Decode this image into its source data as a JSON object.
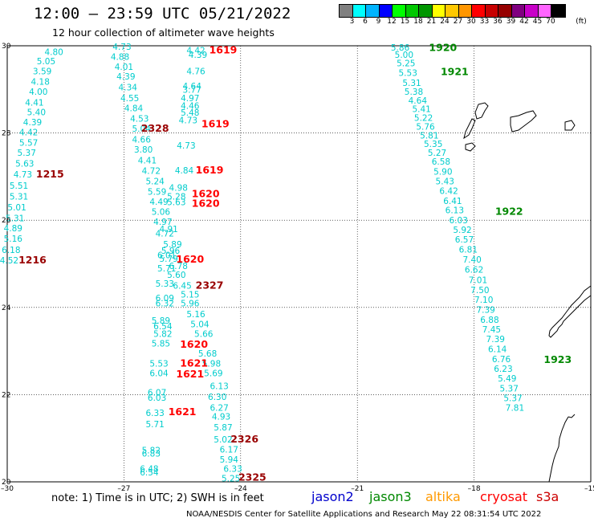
{
  "header": {
    "title": "12:00 – 23:59 UTC 05/21/2022",
    "subtitle": "12 hour collection of altimeter wave heights"
  },
  "legend": {
    "colors": [
      "#808080",
      "#00ffff",
      "#00b4ff",
      "#0000ff",
      "#00ff00",
      "#00c800",
      "#009600",
      "#ffff00",
      "#ffc800",
      "#ff9600",
      "#ff0000",
      "#c80000",
      "#960000",
      "#800080",
      "#c800c8",
      "#ff64ff",
      "#000000"
    ],
    "ticks": [
      "3",
      "6",
      "9",
      "12",
      "15",
      "18",
      "21",
      "24",
      "27",
      "30",
      "33",
      "36",
      "39",
      "42",
      "45",
      "70",
      "(ft)"
    ]
  },
  "axes": {
    "lon_labels": [
      "–30",
      "–27",
      "–24",
      "–21",
      "–18",
      "–15"
    ],
    "lat_labels": [
      "30",
      "28",
      "26",
      "24",
      "22",
      "20"
    ]
  },
  "colors": {
    "cyan": "#00cccc",
    "cryosat": "#ff0000",
    "cryosat_dark": "#990000",
    "jason3": "#008800"
  },
  "wave_heights": [
    {
      "v": "4.80",
      "lon": -28.8,
      "lat": 29.86,
      "c": "cyan"
    },
    {
      "v": "5.05",
      "lon": -29.0,
      "lat": 29.65,
      "c": "cyan"
    },
    {
      "v": "3.59",
      "lon": -29.1,
      "lat": 29.42,
      "c": "cyan"
    },
    {
      "v": "4.18",
      "lon": -29.15,
      "lat": 29.18,
      "c": "cyan"
    },
    {
      "v": "4.00",
      "lon": -29.2,
      "lat": 28.95,
      "c": "cyan"
    },
    {
      "v": "4.41",
      "lon": -29.3,
      "lat": 28.7,
      "c": "cyan"
    },
    {
      "v": "5.40",
      "lon": -29.25,
      "lat": 28.48,
      "c": "cyan"
    },
    {
      "v": "4.39",
      "lon": -29.35,
      "lat": 28.25,
      "c": "cyan"
    },
    {
      "v": "4.42",
      "lon": -29.45,
      "lat": 28.02,
      "c": "cyan"
    },
    {
      "v": "5.57",
      "lon": -29.45,
      "lat": 27.78,
      "c": "cyan"
    },
    {
      "v": "5.37",
      "lon": -29.5,
      "lat": 27.55,
      "c": "cyan"
    },
    {
      "v": "5.63",
      "lon": -29.55,
      "lat": 27.3,
      "c": "cyan"
    },
    {
      "v": "4.73",
      "lon": -29.6,
      "lat": 27.05,
      "c": "cyan"
    },
    {
      "v": "5.51",
      "lon": -29.7,
      "lat": 26.8,
      "c": "cyan"
    },
    {
      "v": "5.31",
      "lon": -29.7,
      "lat": 26.55,
      "c": "cyan"
    },
    {
      "v": "5.01",
      "lon": -29.75,
      "lat": 26.3,
      "c": "cyan"
    },
    {
      "v": "5.31",
      "lon": -29.8,
      "lat": 26.05,
      "c": "cyan"
    },
    {
      "v": "4.89",
      "lon": -29.85,
      "lat": 25.82,
      "c": "cyan"
    },
    {
      "v": "5.16",
      "lon": -29.85,
      "lat": 25.58,
      "c": "cyan"
    },
    {
      "v": "6.18",
      "lon": -29.9,
      "lat": 25.32,
      "c": "cyan"
    },
    {
      "v": "4.52",
      "lon": -29.95,
      "lat": 25.08,
      "c": "cyan"
    },
    {
      "v": "1215",
      "lon": -28.9,
      "lat": 27.05,
      "c": "cryosat_dark"
    },
    {
      "v": "1216",
      "lon": -29.35,
      "lat": 25.08,
      "c": "cryosat_dark"
    },
    {
      "v": "4.73",
      "lon": -27.05,
      "lat": 29.98,
      "c": "cyan"
    },
    {
      "v": "4.88",
      "lon": -27.1,
      "lat": 29.75,
      "c": "cyan"
    },
    {
      "v": "4.01",
      "lon": -27.0,
      "lat": 29.52,
      "c": "cyan"
    },
    {
      "v": "4.39",
      "lon": -26.95,
      "lat": 29.3,
      "c": "cyan"
    },
    {
      "v": "4.34",
      "lon": -26.9,
      "lat": 29.05,
      "c": "cyan"
    },
    {
      "v": "4.55",
      "lon": -26.85,
      "lat": 28.8,
      "c": "cyan"
    },
    {
      "v": "4.84",
      "lon": -26.75,
      "lat": 28.57,
      "c": "cyan"
    },
    {
      "v": "4.53",
      "lon": -26.6,
      "lat": 28.33,
      "c": "cyan"
    },
    {
      "v": "5.04",
      "lon": -26.55,
      "lat": 28.1,
      "c": "cyan"
    },
    {
      "v": "4.66",
      "lon": -26.55,
      "lat": 27.85,
      "c": "cyan"
    },
    {
      "v": "3.80",
      "lon": -26.5,
      "lat": 27.62,
      "c": "cyan"
    },
    {
      "v": "4.41",
      "lon": -26.4,
      "lat": 27.38,
      "c": "cyan"
    },
    {
      "v": "4.72",
      "lon": -26.3,
      "lat": 27.14,
      "c": "cyan"
    },
    {
      "v": "5.24",
      "lon": -26.2,
      "lat": 26.9,
      "c": "cyan"
    },
    {
      "v": "5.59",
      "lon": -26.15,
      "lat": 26.66,
      "c": "cyan"
    },
    {
      "v": "4.49",
      "lon": -26.1,
      "lat": 26.43,
      "c": "cyan"
    },
    {
      "v": "5.06",
      "lon": -26.05,
      "lat": 26.2,
      "c": "cyan"
    },
    {
      "v": "4.97",
      "lon": -26.0,
      "lat": 25.97,
      "c": "cyan"
    },
    {
      "v": "4.91",
      "lon": -25.85,
      "lat": 25.8,
      "c": "cyan"
    },
    {
      "v": "4.72",
      "lon": -25.95,
      "lat": 25.7,
      "c": "cyan"
    },
    {
      "v": "5.89",
      "lon": -25.75,
      "lat": 25.45,
      "c": "cyan"
    },
    {
      "v": "5.96",
      "lon": -25.8,
      "lat": 25.3,
      "c": "cyan"
    },
    {
      "v": "6.01",
      "lon": -25.9,
      "lat": 25.2,
      "c": "cyan"
    },
    {
      "v": "5.79",
      "lon": -25.85,
      "lat": 25.12,
      "c": "cyan"
    },
    {
      "v": "6.78",
      "lon": -25.6,
      "lat": 24.95,
      "c": "cyan"
    },
    {
      "v": "5.71",
      "lon": -25.9,
      "lat": 24.9,
      "c": "cyan"
    },
    {
      "v": "5.60",
      "lon": -25.65,
      "lat": 24.75,
      "c": "cyan"
    },
    {
      "v": "5.33",
      "lon": -25.95,
      "lat": 24.55,
      "c": "cyan"
    },
    {
      "v": "6.45",
      "lon": -25.5,
      "lat": 24.5,
      "c": "cyan"
    },
    {
      "v": "5.15",
      "lon": -25.3,
      "lat": 24.3,
      "c": "cyan"
    },
    {
      "v": "6.09",
      "lon": -25.95,
      "lat": 24.22,
      "c": "cyan"
    },
    {
      "v": "6.32",
      "lon": -25.95,
      "lat": 24.1,
      "c": "cyan"
    },
    {
      "v": "5.96",
      "lon": -25.3,
      "lat": 24.1,
      "c": "cyan"
    },
    {
      "v": "5.16",
      "lon": -25.15,
      "lat": 23.85,
      "c": "cyan"
    },
    {
      "v": "5.89",
      "lon": -26.05,
      "lat": 23.7,
      "c": "cyan"
    },
    {
      "v": "5.04",
      "lon": -25.05,
      "lat": 23.62,
      "c": "cyan"
    },
    {
      "v": "6.54",
      "lon": -26.0,
      "lat": 23.57,
      "c": "cyan"
    },
    {
      "v": "5.66",
      "lon": -24.95,
      "lat": 23.4,
      "c": "cyan"
    },
    {
      "v": "5.82",
      "lon": -26.0,
      "lat": 23.4,
      "c": "cyan"
    },
    {
      "v": "5.85",
      "lon": -26.05,
      "lat": 23.18,
      "c": "cyan"
    },
    {
      "v": "5.68",
      "lon": -24.85,
      "lat": 22.95,
      "c": "cyan"
    },
    {
      "v": "5.53",
      "lon": -26.1,
      "lat": 22.72,
      "c": "cyan"
    },
    {
      "v": "5.98",
      "lon": -24.75,
      "lat": 22.72,
      "c": "cyan"
    },
    {
      "v": "6.04",
      "lon": -26.1,
      "lat": 22.5,
      "c": "cyan"
    },
    {
      "v": "5.69",
      "lon": -24.7,
      "lat": 22.5,
      "c": "cyan"
    },
    {
      "v": "6.13",
      "lon": -24.55,
      "lat": 22.2,
      "c": "cyan"
    },
    {
      "v": "6.07",
      "lon": -26.15,
      "lat": 22.05,
      "c": "cyan"
    },
    {
      "v": "6.30",
      "lon": -24.6,
      "lat": 21.95,
      "c": "cyan"
    },
    {
      "v": "6.03",
      "lon": -26.15,
      "lat": 21.93,
      "c": "cyan"
    },
    {
      "v": "6.27",
      "lon": -24.55,
      "lat": 21.7,
      "c": "cyan"
    },
    {
      "v": "6.33",
      "lon": -26.2,
      "lat": 21.58,
      "c": "cyan"
    },
    {
      "v": "4.93",
      "lon": -24.5,
      "lat": 21.5,
      "c": "cyan"
    },
    {
      "v": "5.71",
      "lon": -26.2,
      "lat": 21.33,
      "c": "cyan"
    },
    {
      "v": "5.87",
      "lon": -24.45,
      "lat": 21.25,
      "c": "cyan"
    },
    {
      "v": "5.02",
      "lon": -24.45,
      "lat": 20.98,
      "c": "cyan"
    },
    {
      "v": "5.82",
      "lon": -26.3,
      "lat": 20.73,
      "c": "cyan"
    },
    {
      "v": "6.17",
      "lon": -24.3,
      "lat": 20.75,
      "c": "cyan"
    },
    {
      "v": "6.83",
      "lon": -26.3,
      "lat": 20.65,
      "c": "cyan"
    },
    {
      "v": "5.94",
      "lon": -24.3,
      "lat": 20.52,
      "c": "cyan"
    },
    {
      "v": "6.33",
      "lon": -24.2,
      "lat": 20.3,
      "c": "cyan"
    },
    {
      "v": "6.48",
      "lon": -26.35,
      "lat": 20.3,
      "c": "cyan"
    },
    {
      "v": "6.54",
      "lon": -26.35,
      "lat": 20.22,
      "c": "cyan"
    },
    {
      "v": "5.25",
      "lon": -24.25,
      "lat": 20.08,
      "c": "cyan"
    },
    {
      "v": "4.42",
      "lon": -25.15,
      "lat": 29.9,
      "c": "cyan"
    },
    {
      "v": "4.39",
      "lon": -25.1,
      "lat": 29.8,
      "c": "cyan"
    },
    {
      "v": "4.76",
      "lon": -25.15,
      "lat": 29.42,
      "c": "cyan"
    },
    {
      "v": "4.64",
      "lon": -25.25,
      "lat": 29.08,
      "c": "cyan"
    },
    {
      "v": "3.77",
      "lon": -25.25,
      "lat": 29.0,
      "c": "cyan"
    },
    {
      "v": "4.97",
      "lon": -25.3,
      "lat": 28.8,
      "c": "cyan"
    },
    {
      "v": "4.46",
      "lon": -25.3,
      "lat": 28.63,
      "c": "cyan"
    },
    {
      "v": "5.48",
      "lon": -25.3,
      "lat": 28.47,
      "c": "cyan"
    },
    {
      "v": "4.73",
      "lon": -25.35,
      "lat": 28.3,
      "c": "cyan"
    },
    {
      "v": "4.73",
      "lon": -25.4,
      "lat": 27.72,
      "c": "cyan"
    },
    {
      "v": "4.84",
      "lon": -25.45,
      "lat": 27.15,
      "c": "cyan"
    },
    {
      "v": "4.98",
      "lon": -25.6,
      "lat": 26.75,
      "c": "cyan"
    },
    {
      "v": "5.28",
      "lon": -25.65,
      "lat": 26.55,
      "c": "cyan"
    },
    {
      "v": "5.63",
      "lon": -25.65,
      "lat": 26.42,
      "c": "cyan"
    },
    {
      "v": "1619",
      "lon": -24.45,
      "lat": 29.9,
      "c": "cryosat"
    },
    {
      "v": "2328",
      "lon": -26.2,
      "lat": 28.1,
      "c": "cryosat_dark"
    },
    {
      "v": "1619",
      "lon": -24.65,
      "lat": 28.2,
      "c": "cryosat"
    },
    {
      "v": "1619",
      "lon": -24.8,
      "lat": 27.15,
      "c": "cryosat"
    },
    {
      "v": "1620",
      "lon": -24.9,
      "lat": 26.6,
      "c": "cryosat"
    },
    {
      "v": "1620",
      "lon": -24.9,
      "lat": 26.38,
      "c": "cryosat"
    },
    {
      "v": "1620",
      "lon": -25.3,
      "lat": 25.1,
      "c": "cryosat"
    },
    {
      "v": "2327",
      "lon": -24.8,
      "lat": 24.5,
      "c": "cryosat_dark"
    },
    {
      "v": "1620",
      "lon": -25.2,
      "lat": 23.15,
      "c": "cryosat"
    },
    {
      "v": "1621",
      "lon": -25.2,
      "lat": 22.72,
      "c": "cryosat"
    },
    {
      "v": "1621",
      "lon": -25.3,
      "lat": 22.47,
      "c": "cryosat"
    },
    {
      "v": "1621",
      "lon": -25.5,
      "lat": 21.6,
      "c": "cryosat"
    },
    {
      "v": "2326",
      "lon": -23.9,
      "lat": 20.98,
      "c": "cryosat_dark"
    },
    {
      "v": "2325",
      "lon": -23.7,
      "lat": 20.1,
      "c": "cryosat_dark"
    },
    {
      "v": "5.86",
      "lon": -19.9,
      "lat": 29.96,
      "c": "cyan"
    },
    {
      "v": "5.00",
      "lon": -19.8,
      "lat": 29.8,
      "c": "cyan"
    },
    {
      "v": "5.25",
      "lon": -19.75,
      "lat": 29.6,
      "c": "cyan"
    },
    {
      "v": "5.53",
      "lon": -19.7,
      "lat": 29.38,
      "c": "cyan"
    },
    {
      "v": "5.31",
      "lon": -19.6,
      "lat": 29.15,
      "c": "cyan"
    },
    {
      "v": "5.38",
      "lon": -19.55,
      "lat": 28.95,
      "c": "cyan"
    },
    {
      "v": "4.64",
      "lon": -19.45,
      "lat": 28.75,
      "c": "cyan"
    },
    {
      "v": "5.41",
      "lon": -19.35,
      "lat": 28.55,
      "c": "cyan"
    },
    {
      "v": "5.22",
      "lon": -19.3,
      "lat": 28.35,
      "c": "cyan"
    },
    {
      "v": "5.76",
      "lon": -19.25,
      "lat": 28.15,
      "c": "cyan"
    },
    {
      "v": "5.81",
      "lon": -19.15,
      "lat": 27.95,
      "c": "cyan"
    },
    {
      "v": "5.35",
      "lon": -19.05,
      "lat": 27.75,
      "c": "cyan"
    },
    {
      "v": "5.27",
      "lon": -18.95,
      "lat": 27.55,
      "c": "cyan"
    },
    {
      "v": "6.58",
      "lon": -18.85,
      "lat": 27.35,
      "c": "cyan"
    },
    {
      "v": "5.90",
      "lon": -18.8,
      "lat": 27.12,
      "c": "cyan"
    },
    {
      "v": "5.43",
      "lon": -18.75,
      "lat": 26.9,
      "c": "cyan"
    },
    {
      "v": "6.42",
      "lon": -18.65,
      "lat": 26.68,
      "c": "cyan"
    },
    {
      "v": "6.41",
      "lon": -18.55,
      "lat": 26.45,
      "c": "cyan"
    },
    {
      "v": "6.13",
      "lon": -18.5,
      "lat": 26.23,
      "c": "cyan"
    },
    {
      "v": "6.03",
      "lon": -18.4,
      "lat": 26.0,
      "c": "cyan"
    },
    {
      "v": "5.92",
      "lon": -18.3,
      "lat": 25.78,
      "c": "cyan"
    },
    {
      "v": "6.57",
      "lon": -18.25,
      "lat": 25.56,
      "c": "cyan"
    },
    {
      "v": "6.81",
      "lon": -18.15,
      "lat": 25.33,
      "c": "cyan"
    },
    {
      "v": "7.40",
      "lon": -18.05,
      "lat": 25.1,
      "c": "cyan"
    },
    {
      "v": "6.62",
      "lon": -18.0,
      "lat": 24.87,
      "c": "cyan"
    },
    {
      "v": "7.01",
      "lon": -17.9,
      "lat": 24.63,
      "c": "cyan"
    },
    {
      "v": "7.50",
      "lon": -17.85,
      "lat": 24.4,
      "c": "cyan"
    },
    {
      "v": "7.10",
      "lon": -17.75,
      "lat": 24.18,
      "c": "cyan"
    },
    {
      "v": "7.39",
      "lon": -17.7,
      "lat": 23.95,
      "c": "cyan"
    },
    {
      "v": "6.88",
      "lon": -17.6,
      "lat": 23.72,
      "c": "cyan"
    },
    {
      "v": "7.45",
      "lon": -17.55,
      "lat": 23.5,
      "c": "cyan"
    },
    {
      "v": "7.39",
      "lon": -17.45,
      "lat": 23.28,
      "c": "cyan"
    },
    {
      "v": "6.14",
      "lon": -17.4,
      "lat": 23.05,
      "c": "cyan"
    },
    {
      "v": "6.76",
      "lon": -17.3,
      "lat": 22.82,
      "c": "cyan"
    },
    {
      "v": "6.23",
      "lon": -17.25,
      "lat": 22.6,
      "c": "cyan"
    },
    {
      "v": "5.49",
      "lon": -17.15,
      "lat": 22.38,
      "c": "cyan"
    },
    {
      "v": "5.37",
      "lon": -17.1,
      "lat": 22.15,
      "c": "cyan"
    },
    {
      "v": "5.37",
      "lon": -17.0,
      "lat": 21.92,
      "c": "cyan"
    },
    {
      "v": "7.81",
      "lon": -16.95,
      "lat": 21.7,
      "c": "cyan"
    },
    {
      "v": "1920",
      "lon": -18.8,
      "lat": 29.95,
      "c": "jason3"
    },
    {
      "v": "1921",
      "lon": -18.5,
      "lat": 29.4,
      "c": "jason3"
    },
    {
      "v": "1922",
      "lon": -17.1,
      "lat": 26.2,
      "c": "jason3"
    },
    {
      "v": "1923",
      "lon": -15.85,
      "lat": 22.8,
      "c": "jason3"
    }
  ],
  "footer": {
    "note": "note:  1) Time is in UTC;  2) SWH is in feet",
    "satellites": [
      {
        "name": "jason2",
        "color": "#0000cc"
      },
      {
        "name": "jason3",
        "color": "#008800"
      },
      {
        "name": "altika",
        "color": "#ff9900"
      },
      {
        "name": "cryosat",
        "color": "#ff0000"
      },
      {
        "name": "s3a",
        "color": "#cc0000"
      }
    ],
    "credit": "NOAA/NESDIS Center for Satellite Applications and Research     May 22 08:31:54 UTC 2022"
  }
}
